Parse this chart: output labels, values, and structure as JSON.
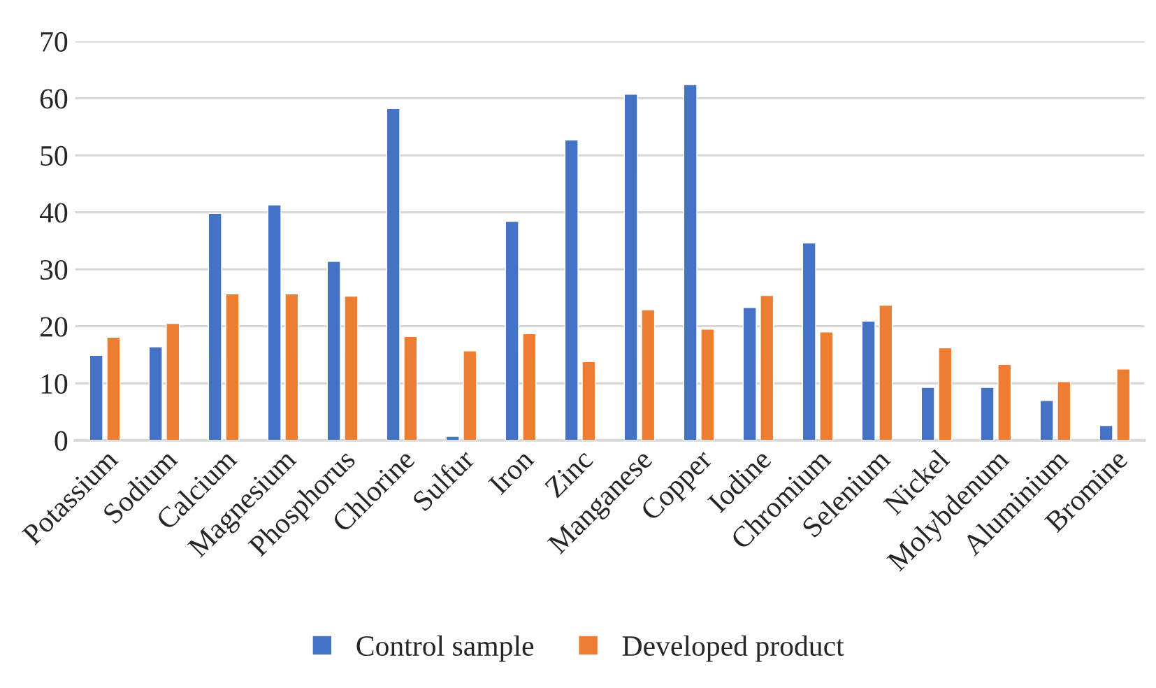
{
  "chart_data": {
    "type": "bar",
    "categories": [
      "Potassium",
      "Sodium",
      "Calcium",
      "Magnesium",
      "Phosphorus",
      "Chlorine",
      "Sulfur",
      "Iron",
      "Zinc",
      "Manganese",
      "Copper",
      "Iodine",
      "Chromium",
      "Selenium",
      "Nickel",
      "Molybdenum",
      "Aluminium",
      "Bromine"
    ],
    "series": [
      {
        "name": "Control sample",
        "color": "#4472c4",
        "values": [
          14.9,
          16.4,
          39.8,
          41.3,
          31.4,
          58.2,
          0.7,
          38.4,
          52.7,
          60.7,
          62.4,
          23.3,
          34.6,
          20.9,
          9.3,
          9.3,
          7.0,
          2.6
        ]
      },
      {
        "name": "Developed product",
        "color": "#ed7d31",
        "values": [
          18.1,
          20.5,
          25.7,
          25.7,
          25.3,
          18.2,
          15.7,
          18.7,
          13.8,
          22.9,
          19.5,
          25.4,
          19.0,
          23.7,
          16.2,
          13.3,
          10.3,
          12.5
        ]
      }
    ],
    "ylim": [
      0,
      70
    ],
    "yticks": [
      0,
      10,
      20,
      30,
      40,
      50,
      60,
      70
    ],
    "grid": "y",
    "legend": "bottom"
  }
}
